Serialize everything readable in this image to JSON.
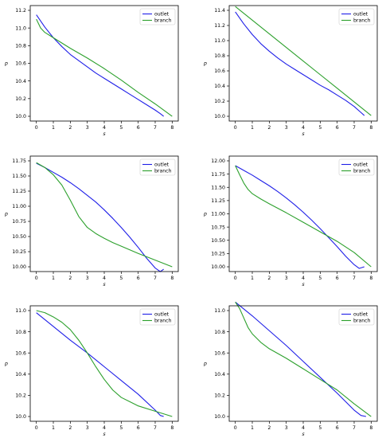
{
  "figure": {
    "background": "#ffffff"
  },
  "series_style": {
    "outlet": "#1f1fe8",
    "branch": "#2ca02c"
  },
  "chart_data": [
    {
      "type": "line",
      "xlabel": "s",
      "ylabel": "p",
      "xlim": [
        0,
        8
      ],
      "ylim": [
        10.0,
        11.2
      ],
      "xticks": [
        "0",
        "1",
        "2",
        "3",
        "4",
        "5",
        "6",
        "7",
        "8"
      ],
      "yticks": [
        "10.0",
        "10.2",
        "10.4",
        "10.6",
        "10.8",
        "11.0",
        "11.2"
      ],
      "legend": "top-right",
      "grid": false,
      "series": [
        {
          "name": "outlet",
          "color": "#1f1fe8",
          "x": [
            0,
            0.5,
            1,
            1.5,
            2,
            2.5,
            3,
            3.5,
            4,
            4.5,
            5,
            5.5,
            6,
            6.5,
            7,
            7.3,
            7.5
          ],
          "y": [
            11.15,
            11.01,
            10.89,
            10.79,
            10.7,
            10.63,
            10.56,
            10.49,
            10.43,
            10.37,
            10.31,
            10.25,
            10.19,
            10.13,
            10.07,
            10.03,
            10.0
          ]
        },
        {
          "name": "branch",
          "color": "#2ca02c",
          "x": [
            0,
            0.25,
            0.5,
            1,
            1.5,
            2,
            3,
            4,
            5,
            6,
            7,
            8
          ],
          "y": [
            11.1,
            11.0,
            10.95,
            10.89,
            10.83,
            10.77,
            10.66,
            10.54,
            10.41,
            10.27,
            10.14,
            10.0
          ]
        }
      ]
    },
    {
      "type": "line",
      "xlabel": "s",
      "ylabel": "p",
      "xlim": [
        0,
        8
      ],
      "ylim": [
        10.0,
        11.4
      ],
      "xticks": [
        "0",
        "1",
        "2",
        "3",
        "4",
        "5",
        "6",
        "7",
        "8"
      ],
      "yticks": [
        "10.0",
        "10.2",
        "10.4",
        "10.6",
        "10.8",
        "11.0",
        "11.2",
        "11.4"
      ],
      "legend": "top-right",
      "grid": false,
      "series": [
        {
          "name": "outlet",
          "color": "#1f1fe8",
          "x": [
            0,
            0.5,
            1,
            1.5,
            2,
            2.5,
            3,
            3.5,
            4,
            4.5,
            5,
            5.5,
            6,
            6.5,
            7,
            7.4,
            7.6
          ],
          "y": [
            11.38,
            11.22,
            11.08,
            10.96,
            10.86,
            10.77,
            10.69,
            10.62,
            10.55,
            10.48,
            10.41,
            10.35,
            10.28,
            10.21,
            10.13,
            10.05,
            10.01
          ]
        },
        {
          "name": "branch",
          "color": "#2ca02c",
          "x": [
            0,
            1,
            2,
            3,
            4,
            5,
            6,
            7,
            8
          ],
          "y": [
            11.45,
            11.27,
            11.09,
            10.91,
            10.73,
            10.55,
            10.37,
            10.19,
            10.01
          ]
        }
      ]
    },
    {
      "type": "line",
      "xlabel": "s",
      "ylabel": "p",
      "xlim": [
        0,
        8
      ],
      "ylim": [
        10.0,
        11.75
      ],
      "xticks": [
        "0",
        "1",
        "2",
        "3",
        "4",
        "5",
        "6",
        "7",
        "8"
      ],
      "yticks": [
        "10.00",
        "10.25",
        "10.50",
        "10.75",
        "11.00",
        "11.25",
        "11.50",
        "11.75"
      ],
      "legend": "top-right",
      "grid": false,
      "series": [
        {
          "name": "outlet",
          "color": "#1f1fe8",
          "x": [
            0,
            0.5,
            1,
            1.5,
            2,
            2.5,
            3,
            3.5,
            4,
            4.5,
            5,
            5.5,
            6,
            6.5,
            7,
            7.3,
            7.5
          ],
          "y": [
            11.71,
            11.64,
            11.56,
            11.48,
            11.39,
            11.29,
            11.18,
            11.07,
            10.94,
            10.8,
            10.65,
            10.49,
            10.32,
            10.14,
            9.98,
            9.92,
            9.96
          ]
        },
        {
          "name": "branch",
          "color": "#2ca02c",
          "x": [
            0,
            0.5,
            1,
            1.5,
            2,
            2.5,
            3,
            3.5,
            4,
            4.5,
            5,
            6,
            7,
            8
          ],
          "y": [
            11.72,
            11.64,
            11.52,
            11.35,
            11.1,
            10.83,
            10.65,
            10.55,
            10.47,
            10.4,
            10.34,
            10.22,
            10.11,
            10.0
          ]
        }
      ]
    },
    {
      "type": "line",
      "xlabel": "s",
      "ylabel": "p",
      "xlim": [
        0,
        8
      ],
      "ylim": [
        10.0,
        12.0
      ],
      "xticks": [
        "0",
        "1",
        "2",
        "3",
        "4",
        "5",
        "6",
        "7",
        "8"
      ],
      "yticks": [
        "10.00",
        "10.25",
        "10.50",
        "10.75",
        "11.00",
        "11.25",
        "11.50",
        "11.75",
        "12.00"
      ],
      "legend": "top-right",
      "grid": false,
      "series": [
        {
          "name": "outlet",
          "color": "#1f1fe8",
          "x": [
            0,
            0.5,
            1,
            1.5,
            2,
            2.5,
            3,
            3.5,
            4,
            4.5,
            5,
            5.5,
            6,
            6.5,
            7,
            7.3,
            7.6
          ],
          "y": [
            11.91,
            11.82,
            11.73,
            11.63,
            11.53,
            11.42,
            11.3,
            11.17,
            11.03,
            10.88,
            10.72,
            10.55,
            10.38,
            10.2,
            10.04,
            9.97,
            10.0
          ]
        },
        {
          "name": "branch",
          "color": "#2ca02c",
          "x": [
            0,
            0.25,
            0.5,
            0.75,
            1,
            1.5,
            2,
            3,
            4,
            5,
            6,
            7,
            8
          ],
          "y": [
            11.91,
            11.74,
            11.58,
            11.46,
            11.38,
            11.28,
            11.19,
            11.02,
            10.84,
            10.66,
            10.48,
            10.27,
            10.0
          ]
        }
      ]
    },
    {
      "type": "line",
      "xlabel": "s",
      "ylabel": "p",
      "xlim": [
        0,
        8
      ],
      "ylim": [
        10.0,
        11.0
      ],
      "xticks": [
        "0",
        "1",
        "2",
        "3",
        "4",
        "5",
        "6",
        "7",
        "8"
      ],
      "yticks": [
        "10.0",
        "10.2",
        "10.4",
        "10.6",
        "10.8",
        "11.0"
      ],
      "legend": "top-right",
      "grid": false,
      "series": [
        {
          "name": "outlet",
          "color": "#1f1fe8",
          "x": [
            0,
            1,
            2,
            3,
            4,
            5,
            6,
            7,
            7.3,
            7.5
          ],
          "y": [
            10.98,
            10.85,
            10.72,
            10.6,
            10.47,
            10.34,
            10.21,
            10.06,
            10.01,
            10.0
          ]
        },
        {
          "name": "branch",
          "color": "#2ca02c",
          "x": [
            0,
            0.5,
            1,
            1.5,
            2,
            2.5,
            3,
            3.5,
            4,
            4.5,
            5,
            5.5,
            6,
            7,
            8
          ],
          "y": [
            11.0,
            10.98,
            10.94,
            10.89,
            10.82,
            10.72,
            10.6,
            10.47,
            10.35,
            10.25,
            10.18,
            10.14,
            10.1,
            10.05,
            10.0
          ]
        }
      ]
    },
    {
      "type": "line",
      "xlabel": "s",
      "ylabel": "p",
      "xlim": [
        0,
        8
      ],
      "ylim": [
        10.0,
        11.0
      ],
      "xticks": [
        "0",
        "1",
        "2",
        "3",
        "4",
        "5",
        "6",
        "7",
        "8"
      ],
      "yticks": [
        "10.0",
        "10.2",
        "10.4",
        "10.6",
        "10.8",
        "11.0"
      ],
      "legend": "top-right",
      "grid": false,
      "series": [
        {
          "name": "outlet",
          "color": "#1f1fe8",
          "x": [
            0,
            1,
            2,
            3,
            4,
            5,
            6,
            7,
            7.4,
            7.7
          ],
          "y": [
            11.08,
            10.95,
            10.81,
            10.67,
            10.52,
            10.37,
            10.22,
            10.06,
            10.01,
            10.0
          ]
        },
        {
          "name": "branch",
          "color": "#2ca02c",
          "x": [
            0,
            0.25,
            0.5,
            0.75,
            1,
            1.5,
            2,
            3,
            4,
            5,
            6,
            7,
            8
          ],
          "y": [
            11.08,
            11.02,
            10.93,
            10.84,
            10.78,
            10.7,
            10.64,
            10.55,
            10.45,
            10.35,
            10.25,
            10.12,
            10.0
          ]
        }
      ]
    }
  ]
}
